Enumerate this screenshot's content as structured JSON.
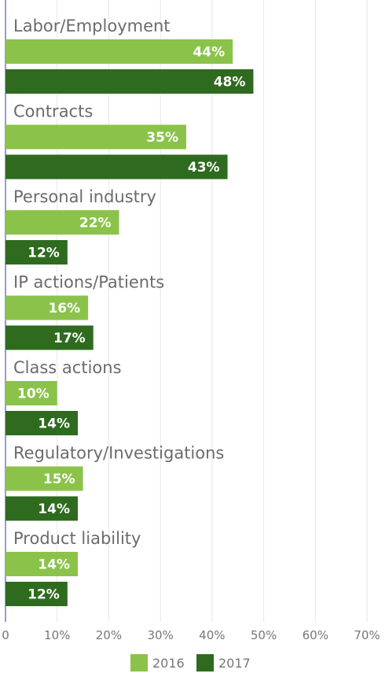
{
  "chart_data": {
    "type": "bar",
    "orientation": "horizontal",
    "categories": [
      "Labor/Employment",
      "Contracts",
      "Personal industry",
      "IP actions/Patients",
      "Class actions",
      "Regulatory/Investigations",
      "Product liability"
    ],
    "series": [
      {
        "name": "2016",
        "color": "#8bc34a",
        "values": [
          44,
          35,
          22,
          16,
          10,
          15,
          14
        ],
        "labels": [
          "44%",
          "35%",
          "22%",
          "16%",
          "10%",
          "15%",
          "14%"
        ]
      },
      {
        "name": "2017",
        "color": "#2e6b1f",
        "values": [
          48,
          43,
          12,
          17,
          14,
          14,
          12
        ],
        "labels": [
          "48%",
          "43%",
          "12%",
          "17%",
          "14%",
          "14%",
          "12%"
        ]
      }
    ],
    "xlim": [
      0,
      70
    ],
    "xticks": [
      0,
      10,
      20,
      30,
      40,
      50,
      60,
      70
    ],
    "xtick_labels": [
      "0",
      "10%",
      "20%",
      "30%",
      "40%",
      "50%",
      "60%",
      "70%"
    ],
    "grid": true,
    "legend": "bottom-center"
  }
}
